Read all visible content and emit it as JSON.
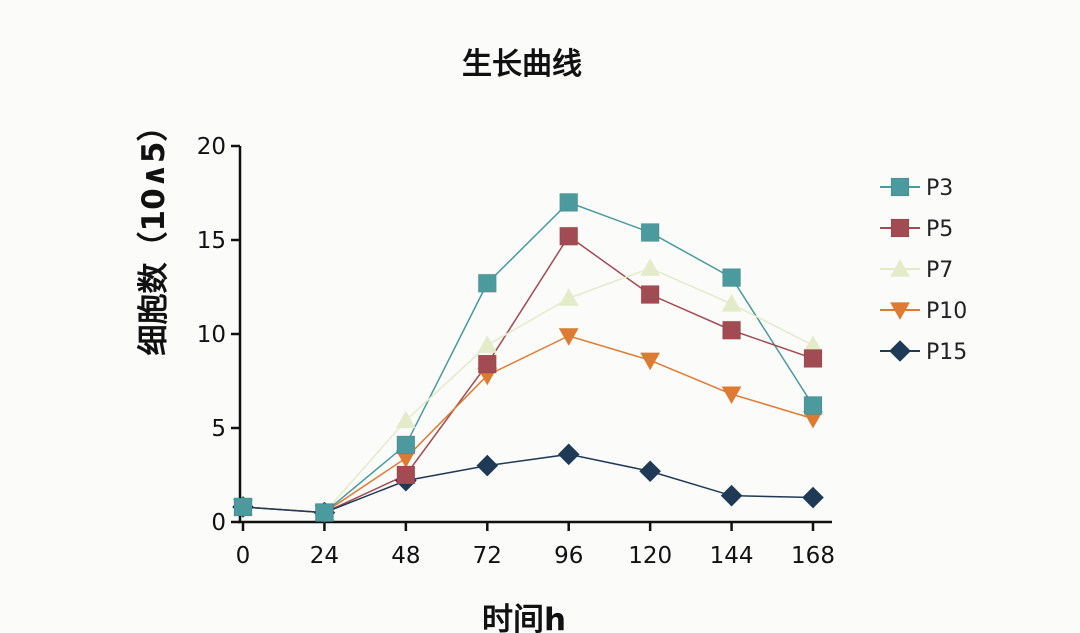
{
  "chart_data": {
    "type": "line",
    "title": "生长曲线",
    "xlabel": "时间h",
    "ylabel": "细胞数（10∧5）",
    "x": [
      0,
      24,
      48,
      72,
      96,
      120,
      144,
      168
    ],
    "x_tick_labels": [
      "0",
      "24",
      "48",
      "72",
      "96",
      "120",
      "144",
      "168"
    ],
    "ylim": [
      0,
      20
    ],
    "y_ticks": [
      0,
      5,
      10,
      15,
      20
    ],
    "y_tick_labels": [
      "0",
      "5",
      "10",
      "15",
      "20"
    ],
    "grid": false,
    "legend_position": "right",
    "series": [
      {
        "name": "P3",
        "marker": "square",
        "color": "#4a9a9e",
        "values": [
          0.8,
          0.5,
          4.1,
          12.7,
          17.0,
          15.4,
          13.0,
          6.2
        ]
      },
      {
        "name": "P5",
        "marker": "square",
        "color": "#a24b52",
        "values": [
          0.8,
          0.5,
          2.5,
          8.4,
          15.2,
          12.1,
          10.2,
          8.7
        ]
      },
      {
        "name": "P7",
        "marker": "triangle-up",
        "color": "#e4ebc9",
        "values": [
          0.8,
          0.5,
          5.4,
          9.4,
          11.9,
          13.5,
          11.6,
          9.4
        ]
      },
      {
        "name": "P10",
        "marker": "triangle-down",
        "color": "#de7b33",
        "values": [
          0.8,
          0.5,
          3.4,
          7.8,
          9.9,
          8.6,
          6.8,
          5.5
        ]
      },
      {
        "name": "P15",
        "marker": "diamond",
        "color": "#1f3a56",
        "values": [
          0.8,
          0.5,
          2.2,
          3.0,
          3.6,
          2.7,
          1.4,
          1.3
        ]
      }
    ]
  }
}
